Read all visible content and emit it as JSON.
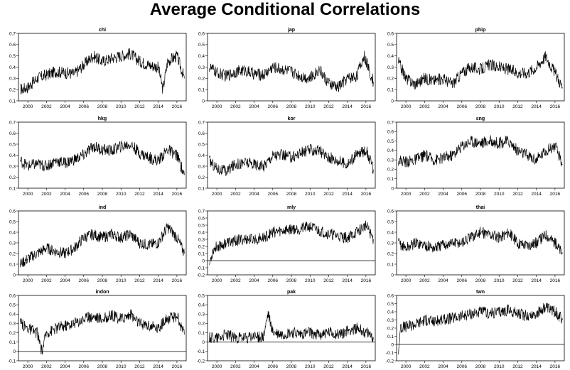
{
  "title": "Average Conditional Correlations",
  "chart_data": [
    {
      "type": "line",
      "title": "chi",
      "xlim": [
        1999,
        2017
      ],
      "ylim": [
        0.1,
        0.7
      ],
      "yticks": [
        "0.1",
        "0.2",
        "0.3",
        "0.4",
        "0.5",
        "0.6",
        "0.7"
      ],
      "xticks": [
        "2000",
        "2002",
        "2004",
        "2006",
        "2008",
        "2010",
        "2012",
        "2014",
        "2016"
      ],
      "zero_line": false,
      "x": [
        1999.2,
        2000,
        2001,
        2002,
        2003,
        2004,
        2005,
        2006,
        2007,
        2008,
        2009,
        2010,
        2011,
        2012,
        2013,
        2014,
        2014.5,
        2015,
        2016,
        2016.8
      ],
      "y": [
        0.2,
        0.22,
        0.3,
        0.33,
        0.36,
        0.35,
        0.34,
        0.42,
        0.5,
        0.45,
        0.48,
        0.5,
        0.52,
        0.45,
        0.42,
        0.4,
        0.2,
        0.45,
        0.5,
        0.3
      ]
    },
    {
      "type": "line",
      "title": "jap",
      "xlim": [
        1999,
        2017
      ],
      "ylim": [
        0.0,
        0.6
      ],
      "yticks": [
        "0",
        "0.1",
        "0.2",
        "0.3",
        "0.4",
        "0.5",
        "0.6"
      ],
      "xticks": [
        "2000",
        "2002",
        "2004",
        "2006",
        "2008",
        "2010",
        "2012",
        "2014",
        "2016"
      ],
      "zero_line": false,
      "x": [
        1999.2,
        2000,
        2001,
        2002,
        2003,
        2004,
        2005,
        2006,
        2007,
        2008,
        2009,
        2010,
        2011,
        2012,
        2013,
        2014,
        2015,
        2015.8,
        2016.8
      ],
      "y": [
        0.3,
        0.25,
        0.22,
        0.26,
        0.27,
        0.24,
        0.23,
        0.3,
        0.28,
        0.26,
        0.22,
        0.2,
        0.28,
        0.15,
        0.12,
        0.2,
        0.22,
        0.4,
        0.17
      ]
    },
    {
      "type": "line",
      "title": "phip",
      "xlim": [
        1999,
        2017
      ],
      "ylim": [
        0.0,
        0.6
      ],
      "yticks": [
        "0",
        "0.1",
        "0.2",
        "0.3",
        "0.4",
        "0.5",
        "0.6"
      ],
      "xticks": [
        "2000",
        "2002",
        "2004",
        "2006",
        "2008",
        "2010",
        "2012",
        "2014",
        "2016"
      ],
      "zero_line": false,
      "x": [
        1999.2,
        2000,
        2001,
        2002,
        2003,
        2004,
        2005,
        2006,
        2007,
        2008,
        2009,
        2010,
        2011,
        2012,
        2013,
        2014,
        2015,
        2016,
        2016.8
      ],
      "y": [
        0.35,
        0.2,
        0.15,
        0.2,
        0.18,
        0.2,
        0.15,
        0.25,
        0.3,
        0.28,
        0.32,
        0.3,
        0.28,
        0.25,
        0.25,
        0.3,
        0.4,
        0.25,
        0.12
      ]
    },
    {
      "type": "line",
      "title": "hkg",
      "xlim": [
        1999,
        2017
      ],
      "ylim": [
        0.1,
        0.7
      ],
      "yticks": [
        "0.1",
        "0.2",
        "0.3",
        "0.4",
        "0.5",
        "0.6",
        "0.7"
      ],
      "xticks": [
        "2000",
        "2002",
        "2004",
        "2006",
        "2008",
        "2010",
        "2012",
        "2014",
        "2016"
      ],
      "zero_line": false,
      "x": [
        1999.2,
        2000,
        2001,
        2002,
        2003,
        2004,
        2005,
        2006,
        2007,
        2008,
        2009,
        2010,
        2011,
        2012,
        2013,
        2014,
        2015,
        2016,
        2016.8
      ],
      "y": [
        0.35,
        0.3,
        0.32,
        0.3,
        0.35,
        0.33,
        0.36,
        0.4,
        0.48,
        0.45,
        0.44,
        0.48,
        0.5,
        0.42,
        0.38,
        0.35,
        0.45,
        0.4,
        0.22
      ]
    },
    {
      "type": "line",
      "title": "kor",
      "xlim": [
        1999,
        2017
      ],
      "ylim": [
        0.1,
        0.7
      ],
      "yticks": [
        "0.1",
        "0.2",
        "0.3",
        "0.4",
        "0.5",
        "0.6",
        "0.7"
      ],
      "xticks": [
        "2000",
        "2002",
        "2004",
        "2006",
        "2008",
        "2010",
        "2012",
        "2014",
        "2016"
      ],
      "zero_line": false,
      "x": [
        1999.2,
        2000,
        2001,
        2002,
        2003,
        2004,
        2005,
        2006,
        2007,
        2008,
        2009,
        2010,
        2011,
        2012,
        2013,
        2014,
        2015,
        2016,
        2016.8
      ],
      "y": [
        0.35,
        0.28,
        0.25,
        0.32,
        0.33,
        0.32,
        0.3,
        0.4,
        0.4,
        0.38,
        0.42,
        0.45,
        0.44,
        0.38,
        0.35,
        0.32,
        0.4,
        0.45,
        0.27
      ]
    },
    {
      "type": "line",
      "title": "sng",
      "xlim": [
        1999,
        2017
      ],
      "ylim": [
        0.0,
        0.7
      ],
      "yticks": [
        "0",
        "0.1",
        "0.2",
        "0.3",
        "0.4",
        "0.5",
        "0.6",
        "0.7"
      ],
      "xticks": [
        "2000",
        "2002",
        "2004",
        "2006",
        "2008",
        "2010",
        "2012",
        "2014",
        "2016"
      ],
      "zero_line": false,
      "x": [
        1999.2,
        2000,
        2001,
        2002,
        2003,
        2004,
        2005,
        2006,
        2007,
        2008,
        2009,
        2010,
        2011,
        2012,
        2013,
        2014,
        2015,
        2016,
        2016.8
      ],
      "y": [
        0.3,
        0.28,
        0.3,
        0.35,
        0.3,
        0.32,
        0.35,
        0.45,
        0.5,
        0.48,
        0.5,
        0.48,
        0.5,
        0.4,
        0.35,
        0.3,
        0.4,
        0.45,
        0.25
      ]
    },
    {
      "type": "line",
      "title": "ind",
      "xlim": [
        1999,
        2017
      ],
      "ylim": [
        0.0,
        0.6
      ],
      "yticks": [
        "0",
        "0.1",
        "0.2",
        "0.3",
        "0.4",
        "0.5",
        "0.6"
      ],
      "xticks": [
        "2000",
        "2002",
        "2004",
        "2006",
        "2008",
        "2010",
        "2012",
        "2014",
        "2016"
      ],
      "zero_line": false,
      "x": [
        1999.2,
        2000,
        2001,
        2002,
        2003,
        2004,
        2005,
        2006,
        2007,
        2008,
        2009,
        2010,
        2011,
        2012,
        2013,
        2014,
        2015,
        2016,
        2016.8
      ],
      "y": [
        0.1,
        0.15,
        0.2,
        0.25,
        0.22,
        0.2,
        0.25,
        0.35,
        0.38,
        0.35,
        0.38,
        0.35,
        0.38,
        0.3,
        0.28,
        0.3,
        0.45,
        0.35,
        0.2
      ]
    },
    {
      "type": "line",
      "title": "mly",
      "xlim": [
        1999,
        2017
      ],
      "ylim": [
        -0.2,
        0.7
      ],
      "yticks": [
        "-0.2",
        "-0.1",
        "0",
        "0.1",
        "0.2",
        "0.3",
        "0.4",
        "0.5",
        "0.6",
        "0.7"
      ],
      "xticks": [
        "2000",
        "2002",
        "2004",
        "2006",
        "2008",
        "2010",
        "2012",
        "2014",
        "2016"
      ],
      "zero_line": true,
      "x": [
        1999.2,
        1999.6,
        2000,
        2001,
        2002,
        2003,
        2004,
        2005,
        2006,
        2007,
        2008,
        2009,
        2010,
        2011,
        2012,
        2013,
        2014,
        2015,
        2016,
        2016.8
      ],
      "y": [
        -0.05,
        0.15,
        0.2,
        0.25,
        0.28,
        0.3,
        0.3,
        0.32,
        0.4,
        0.42,
        0.45,
        0.45,
        0.48,
        0.42,
        0.38,
        0.35,
        0.32,
        0.4,
        0.5,
        0.3
      ]
    },
    {
      "type": "line",
      "title": "thai",
      "xlim": [
        1999,
        2017
      ],
      "ylim": [
        0.0,
        0.6
      ],
      "yticks": [
        "0",
        "0.1",
        "0.2",
        "0.3",
        "0.4",
        "0.5",
        "0.6"
      ],
      "xticks": [
        "2000",
        "2002",
        "2004",
        "2006",
        "2008",
        "2010",
        "2012",
        "2014",
        "2016"
      ],
      "zero_line": false,
      "x": [
        1999.2,
        2000,
        2001,
        2002,
        2003,
        2004,
        2005,
        2006,
        2007,
        2008,
        2009,
        2010,
        2011,
        2012,
        2013,
        2014,
        2015,
        2016,
        2016.8
      ],
      "y": [
        0.3,
        0.25,
        0.3,
        0.28,
        0.25,
        0.28,
        0.3,
        0.3,
        0.35,
        0.4,
        0.38,
        0.35,
        0.4,
        0.3,
        0.28,
        0.3,
        0.38,
        0.3,
        0.2
      ]
    },
    {
      "type": "line",
      "title": "indon",
      "xlim": [
        1999,
        2017
      ],
      "ylim": [
        -0.1,
        0.6
      ],
      "yticks": [
        "-0.1",
        "0",
        "0.1",
        "0.2",
        "0.3",
        "0.4",
        "0.5",
        "0.6"
      ],
      "xticks": [
        "2000",
        "2002",
        "2004",
        "2006",
        "2008",
        "2010",
        "2012",
        "2014",
        "2016"
      ],
      "zero_line": true,
      "x": [
        1999.2,
        2000,
        2001,
        2001.5,
        2002,
        2003,
        2004,
        2005,
        2006,
        2007,
        2008,
        2009,
        2010,
        2011,
        2012,
        2013,
        2014,
        2015,
        2016,
        2016.8
      ],
      "y": [
        0.3,
        0.25,
        0.2,
        0.0,
        0.2,
        0.25,
        0.28,
        0.3,
        0.35,
        0.38,
        0.35,
        0.38,
        0.35,
        0.4,
        0.3,
        0.28,
        0.25,
        0.35,
        0.38,
        0.18
      ]
    },
    {
      "type": "line",
      "title": "pak",
      "xlim": [
        1999,
        2017
      ],
      "ylim": [
        -0.2,
        0.5
      ],
      "yticks": [
        "-0.2",
        "-0.1",
        "0",
        "0.1",
        "0.2",
        "0.3",
        "0.4",
        "0.5"
      ],
      "xticks": [
        "2000",
        "2002",
        "2004",
        "2006",
        "2008",
        "2010",
        "2012",
        "2014",
        "2016"
      ],
      "zero_line": true,
      "x": [
        1999.2,
        2000,
        2001,
        2002,
        2003,
        2004,
        2005,
        2005.5,
        2006,
        2007,
        2008,
        2009,
        2010,
        2011,
        2012,
        2013,
        2014,
        2015,
        2016,
        2016.8
      ],
      "y": [
        0.05,
        0.05,
        0.08,
        0.05,
        0.04,
        0.06,
        0.05,
        0.3,
        0.1,
        0.08,
        0.1,
        0.08,
        0.1,
        0.08,
        0.1,
        0.08,
        0.12,
        0.15,
        0.1,
        0.05
      ]
    },
    {
      "type": "line",
      "title": "twn",
      "xlim": [
        1999,
        2017
      ],
      "ylim": [
        -0.2,
        0.6
      ],
      "yticks": [
        "-0.2",
        "-0.1",
        "0",
        "0.1",
        "0.2",
        "0.3",
        "0.4",
        "0.5",
        "0.6"
      ],
      "xticks": [
        "2000",
        "2002",
        "2004",
        "2006",
        "2008",
        "2010",
        "2012",
        "2014",
        "2016"
      ],
      "zero_line": true,
      "x": [
        1999.2,
        1999.4,
        2000,
        2001,
        2002,
        2003,
        2004,
        2005,
        2006,
        2007,
        2008,
        2009,
        2010,
        2011,
        2012,
        2013,
        2014,
        2015,
        2016,
        2016.8
      ],
      "y": [
        -0.1,
        0.2,
        0.22,
        0.25,
        0.3,
        0.28,
        0.3,
        0.32,
        0.35,
        0.38,
        0.4,
        0.38,
        0.4,
        0.42,
        0.38,
        0.35,
        0.38,
        0.45,
        0.4,
        0.3
      ]
    }
  ]
}
